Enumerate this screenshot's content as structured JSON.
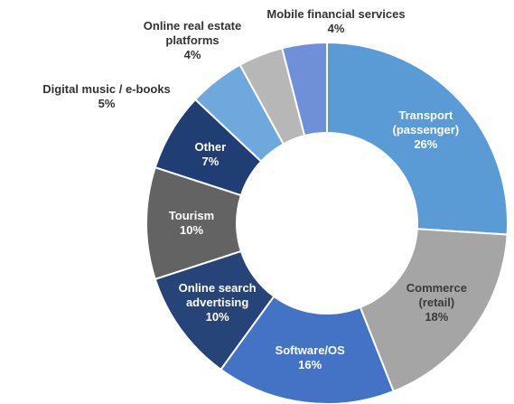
{
  "chart_data": {
    "type": "donut",
    "categories": [
      "Transport (passenger)",
      "Commerce (retail)",
      "Software/OS",
      "Online search advertising",
      "Tourism",
      "Other",
      "Digital music / e-books",
      "Online real estate platforms",
      "Mobile financial services"
    ],
    "values": [
      26,
      18,
      16,
      10,
      10,
      7,
      5,
      4,
      4
    ],
    "value_labels": [
      "26%",
      "18%",
      "16%",
      "10%",
      "10%",
      "7%",
      "5%",
      "4%",
      "4%"
    ],
    "colors": [
      "#5b9bd5",
      "#a5a5a5",
      "#4472c4",
      "#264478",
      "#636363",
      "#203d74",
      "#6fa8dc",
      "#b7b7b7",
      "#6f8fd8"
    ]
  }
}
